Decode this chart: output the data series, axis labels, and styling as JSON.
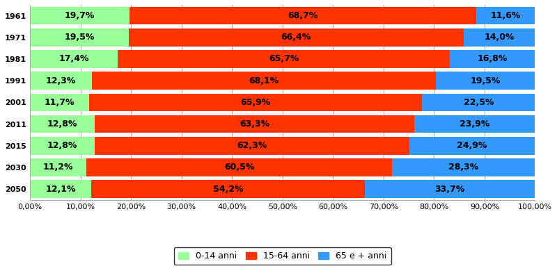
{
  "years": [
    "1961",
    "1971",
    "1981",
    "1991",
    "2001",
    "2011",
    "2015",
    "2030",
    "2050"
  ],
  "young": [
    19.7,
    19.5,
    17.4,
    12.3,
    11.7,
    12.8,
    12.8,
    11.2,
    12.1
  ],
  "working": [
    68.7,
    66.4,
    65.7,
    68.1,
    65.9,
    63.3,
    62.3,
    60.5,
    54.2
  ],
  "old": [
    11.6,
    14.0,
    16.8,
    19.5,
    22.5,
    23.9,
    24.9,
    28.3,
    33.7
  ],
  "color_young": "#99FF99",
  "color_working": "#FF3300",
  "color_old": "#3399FF",
  "label_young": "0-14 anni",
  "label_working": "15-64 anni",
  "label_old": "65 e + anni",
  "bar_height": 0.82,
  "background_color": "#FFFFFF",
  "grid_color": "#AAAAAA",
  "label_fontsize": 9,
  "legend_fontsize": 9,
  "tick_fontsize": 8,
  "xticks": [
    0,
    10,
    20,
    30,
    40,
    50,
    60,
    70,
    80,
    90,
    100
  ],
  "xlim": [
    0,
    100
  ]
}
